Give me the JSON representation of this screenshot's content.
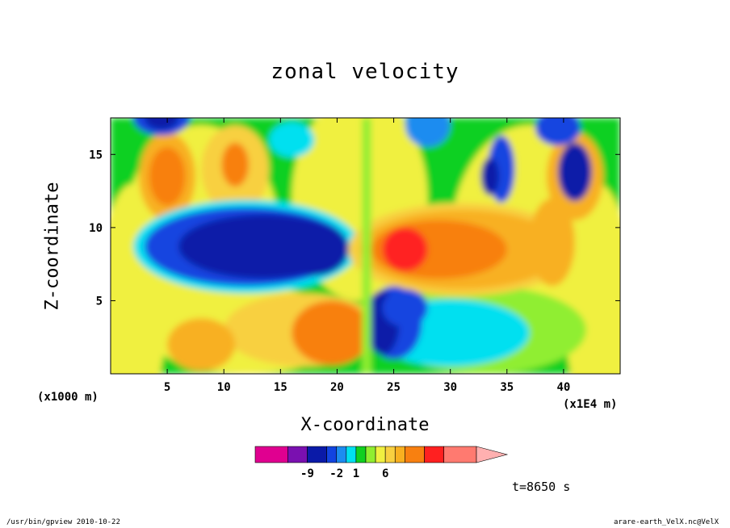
{
  "chart_data": {
    "type": "heatmap",
    "title": "zonal velocity",
    "xlabel": "X-coordinate",
    "ylabel": "Z-coordinate",
    "x_unit_left": "(x1000 m)",
    "x_unit_right": "(x1E4 m)",
    "xlim": [
      0,
      45
    ],
    "ylim": [
      0,
      17.5
    ],
    "xticks": [
      "5",
      "10",
      "15",
      "20",
      "25",
      "30",
      "35",
      "40"
    ],
    "yticks": [
      "5",
      "10",
      "15"
    ],
    "colorbar": {
      "tick_labels": [
        "-9",
        "-2",
        "1",
        "6"
      ],
      "colors": [
        "#e00090",
        "#7a10b0",
        "#0a1aa8",
        "#1244e0",
        "#1c8cf0",
        "#00e0f0",
        "#10d020",
        "#90ee30",
        "#f0f040",
        "#f8d040",
        "#f8b020",
        "#f88010",
        "#ff2020",
        "#ff7a70",
        "#ffb0b0"
      ]
    },
    "annotation": "t=8650 s"
  },
  "footer": {
    "left": "/usr/bin/gpview   2010-10-22",
    "right": "arare-earth_VelX.nc@VelX"
  }
}
